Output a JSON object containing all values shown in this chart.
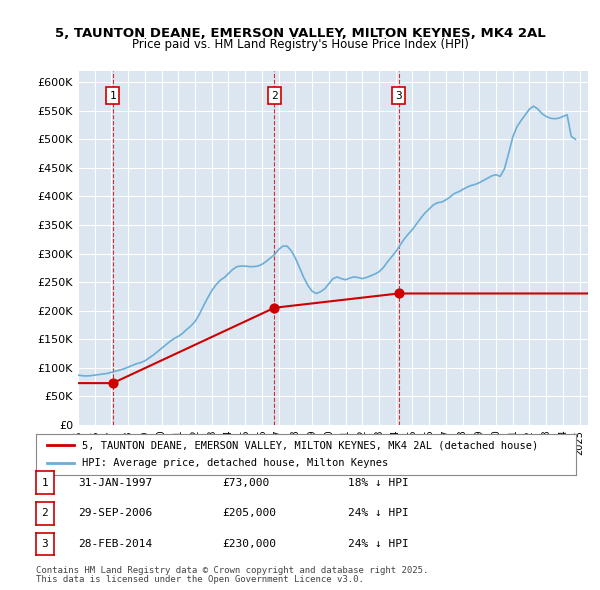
{
  "title": "5, TAUNTON DEANE, EMERSON VALLEY, MILTON KEYNES, MK4 2AL",
  "subtitle": "Price paid vs. HM Land Registry's House Price Index (HPI)",
  "ylabel": "",
  "ylim": [
    0,
    620000
  ],
  "yticks": [
    0,
    50000,
    100000,
    150000,
    200000,
    250000,
    300000,
    350000,
    400000,
    450000,
    500000,
    550000,
    600000
  ],
  "ytick_labels": [
    "£0",
    "£50K",
    "£100K",
    "£150K",
    "£200K",
    "£250K",
    "£300K",
    "£350K",
    "£400K",
    "£450K",
    "£500K",
    "£550K",
    "£600K"
  ],
  "xlim_start": 1995.0,
  "xlim_end": 2025.5,
  "background_color": "#dce6f1",
  "plot_bg_color": "#dce6f1",
  "grid_color": "#ffffff",
  "hpi_color": "#6baed6",
  "price_color": "#cc0000",
  "marker_color": "#cc0000",
  "vline_color": "#cc0000",
  "legend_label_price": "5, TAUNTON DEANE, EMERSON VALLEY, MILTON KEYNES, MK4 2AL (detached house)",
  "legend_label_hpi": "HPI: Average price, detached house, Milton Keynes",
  "transactions": [
    {
      "num": 1,
      "date_dec": 1997.08,
      "date_str": "31-JAN-1997",
      "price": 73000,
      "pct": "18%",
      "dir": "↓"
    },
    {
      "num": 2,
      "date_dec": 2006.75,
      "date_str": "29-SEP-2006",
      "price": 205000,
      "pct": "24%",
      "dir": "↓"
    },
    {
      "num": 3,
      "date_dec": 2014.17,
      "date_str": "28-FEB-2014",
      "price": 230000,
      "pct": "24%",
      "dir": "↓"
    }
  ],
  "footer_line1": "Contains HM Land Registry data © Crown copyright and database right 2025.",
  "footer_line2": "This data is licensed under the Open Government Licence v3.0.",
  "hpi_data_x": [
    1995.0,
    1995.25,
    1995.5,
    1995.75,
    1996.0,
    1996.25,
    1996.5,
    1996.75,
    1997.0,
    1997.25,
    1997.5,
    1997.75,
    1998.0,
    1998.25,
    1998.5,
    1998.75,
    1999.0,
    1999.25,
    1999.5,
    1999.75,
    2000.0,
    2000.25,
    2000.5,
    2000.75,
    2001.0,
    2001.25,
    2001.5,
    2001.75,
    2002.0,
    2002.25,
    2002.5,
    2002.75,
    2003.0,
    2003.25,
    2003.5,
    2003.75,
    2004.0,
    2004.25,
    2004.5,
    2004.75,
    2005.0,
    2005.25,
    2005.5,
    2005.75,
    2006.0,
    2006.25,
    2006.5,
    2006.75,
    2007.0,
    2007.25,
    2007.5,
    2007.75,
    2008.0,
    2008.25,
    2008.5,
    2008.75,
    2009.0,
    2009.25,
    2009.5,
    2009.75,
    2010.0,
    2010.25,
    2010.5,
    2010.75,
    2011.0,
    2011.25,
    2011.5,
    2011.75,
    2012.0,
    2012.25,
    2012.5,
    2012.75,
    2013.0,
    2013.25,
    2013.5,
    2013.75,
    2014.0,
    2014.25,
    2014.5,
    2014.75,
    2015.0,
    2015.25,
    2015.5,
    2015.75,
    2016.0,
    2016.25,
    2016.5,
    2016.75,
    2017.0,
    2017.25,
    2017.5,
    2017.75,
    2018.0,
    2018.25,
    2018.5,
    2018.75,
    2019.0,
    2019.25,
    2019.5,
    2019.75,
    2020.0,
    2020.25,
    2020.5,
    2020.75,
    2021.0,
    2021.25,
    2021.5,
    2021.75,
    2022.0,
    2022.25,
    2022.5,
    2022.75,
    2023.0,
    2023.25,
    2023.5,
    2023.75,
    2024.0,
    2024.25,
    2024.5,
    2024.75
  ],
  "hpi_data_y": [
    87000,
    86000,
    85500,
    86000,
    87000,
    88000,
    89000,
    90000,
    92000,
    94000,
    96000,
    98000,
    101000,
    104000,
    107000,
    109000,
    112000,
    117000,
    122000,
    128000,
    134000,
    140000,
    146000,
    151000,
    155000,
    160000,
    167000,
    173000,
    181000,
    193000,
    208000,
    222000,
    235000,
    245000,
    253000,
    258000,
    265000,
    272000,
    277000,
    278000,
    278000,
    277000,
    277000,
    278000,
    281000,
    286000,
    292000,
    298000,
    307000,
    313000,
    313000,
    305000,
    292000,
    275000,
    258000,
    244000,
    234000,
    230000,
    233000,
    238000,
    247000,
    256000,
    259000,
    256000,
    254000,
    257000,
    259000,
    258000,
    256000,
    258000,
    261000,
    264000,
    268000,
    275000,
    285000,
    294000,
    303000,
    314000,
    325000,
    334000,
    342000,
    352000,
    362000,
    371000,
    378000,
    385000,
    389000,
    390000,
    394000,
    399000,
    405000,
    408000,
    412000,
    416000,
    419000,
    421000,
    424000,
    428000,
    432000,
    436000,
    438000,
    435000,
    448000,
    475000,
    504000,
    522000,
    533000,
    543000,
    553000,
    558000,
    553000,
    545000,
    540000,
    537000,
    536000,
    537000,
    540000,
    543000,
    505000,
    500000
  ],
  "price_data_x": [
    1997.08,
    2006.75,
    2014.17
  ],
  "price_data_y": [
    73000,
    205000,
    230000
  ]
}
